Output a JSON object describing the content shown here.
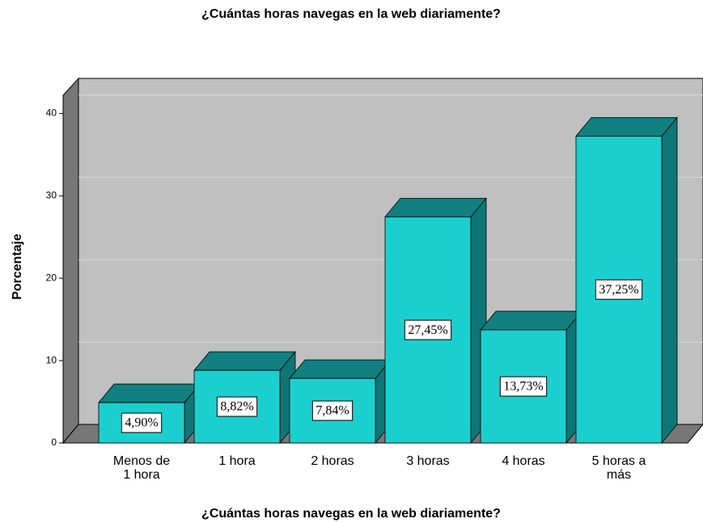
{
  "chart_data": {
    "type": "bar3d",
    "title": "¿Cuántas horas navegas en la web diariamente?",
    "x_label": "¿Cuántas horas navegas en la web diariamente?",
    "y_label": "Porcentaje",
    "categories": [
      "Menos de 1 hora",
      "1 hora",
      "2 horas",
      "3 horas",
      "4 horas",
      "5 horas a más"
    ],
    "values": [
      4.9,
      8.82,
      7.84,
      27.45,
      13.73,
      37.25
    ],
    "value_labels": [
      "4,90%",
      "8,82%",
      "7,84%",
      "27,45%",
      "13,73%",
      "37,25%"
    ],
    "color": "#1ccfcf",
    "ylim": [
      0,
      42
    ],
    "yticks": [
      0,
      10,
      20,
      30,
      40
    ],
    "grid": true
  }
}
